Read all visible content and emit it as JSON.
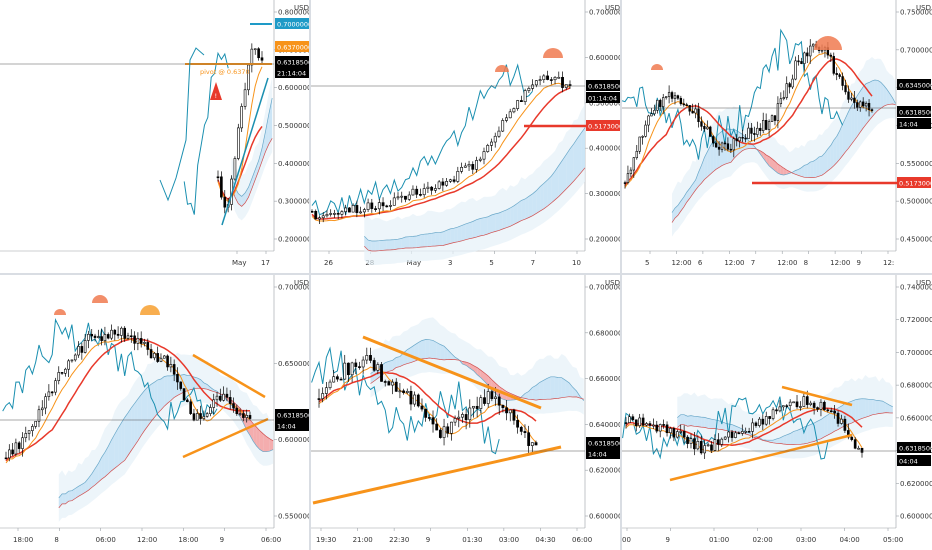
{
  "panels": [
    {
      "id": "p1",
      "currency": "USD",
      "y_ticks": [
        "0.8000000",
        "0.7000000",
        "0.6000000",
        "0.5000000",
        "0.4000000",
        "0.3000000",
        "0.2000000"
      ],
      "x_ticks": [
        "May",
        "17"
      ],
      "price_tags": [
        {
          "text": "0.7000000",
          "bg": "#1e9ac7",
          "fg": "#ffffff"
        },
        {
          "text": "0.6370000",
          "bg": "#f7931a",
          "fg": "#ffffff"
        },
        {
          "text": "0.6318500",
          "bg": "#000000",
          "fg": "#ffffff"
        },
        {
          "text": "21:14:04",
          "bg": "#000000",
          "fg": "#ffffff"
        }
      ],
      "annotation": "pivot @ 0.6370"
    },
    {
      "id": "p2",
      "currency": "USD",
      "y_ticks": [
        "0.7000000",
        "0.6000000",
        "0.5000000",
        "0.4000000",
        "0.3000000",
        "0.2000000"
      ],
      "x_ticks": [
        "26",
        "28",
        "May",
        "3",
        "5",
        "7",
        "10"
      ],
      "price_tags": [
        {
          "text": "0.6318500",
          "bg": "#000000",
          "fg": "#ffffff"
        },
        {
          "text": "01:14:04",
          "bg": "#000000",
          "fg": "#ffffff"
        },
        {
          "text": "0.5173000",
          "bg": "#e8392b",
          "fg": "#ffffff"
        }
      ]
    },
    {
      "id": "p3",
      "currency": "USD",
      "y_ticks": [
        "0.7500000",
        "0.7000000",
        "0.6500000",
        "0.6000000",
        "0.5500000",
        "0.5000000",
        "0.4500000"
      ],
      "x_ticks": [
        "5",
        "12:00",
        "6",
        "12:00",
        "7",
        "12:00",
        "8",
        "12:00",
        "9",
        "12:"
      ],
      "price_tags": [
        {
          "text": "0.6345000",
          "bg": "#000000",
          "fg": "#ffffff"
        },
        {
          "text": "0.6318500",
          "bg": "#000000",
          "fg": "#ffffff"
        },
        {
          "text": "14:04",
          "bg": "#000000",
          "fg": "#ffffff"
        },
        {
          "text": "0.5173000",
          "bg": "#e8392b",
          "fg": "#ffffff"
        }
      ]
    },
    {
      "id": "p4",
      "currency": "USD",
      "y_ticks": [
        "0.7000000",
        "0.6500000",
        "0.6000000",
        "0.5500000"
      ],
      "x_ticks": [
        "18:00",
        "8",
        "06:00",
        "12:00",
        "18:00",
        "9",
        "06:00"
      ],
      "price_tags": [
        {
          "text": "0.6318500",
          "bg": "#000000",
          "fg": "#ffffff"
        },
        {
          "text": "14:04",
          "bg": "#000000",
          "fg": "#ffffff"
        }
      ]
    },
    {
      "id": "p5",
      "currency": "USD",
      "y_ticks": [
        "0.7000000",
        "0.6800000",
        "0.6600000",
        "0.6400000",
        "0.6200000",
        "0.6000000"
      ],
      "x_ticks": [
        "19:30",
        "21:00",
        "22:30",
        "9",
        "01:30",
        "03:00",
        "04:30",
        "06:00"
      ],
      "price_tags": [
        {
          "text": "0.6318500",
          "bg": "#000000",
          "fg": "#ffffff"
        },
        {
          "text": "14:04",
          "bg": "#000000",
          "fg": "#ffffff"
        }
      ]
    },
    {
      "id": "p6",
      "currency": "USD",
      "y_ticks": [
        "0.7400000",
        "0.7200000",
        "0.7000000",
        "0.6800000",
        "0.6600000",
        "0.6400000",
        "0.6200000",
        "0.6000000"
      ],
      "x_ticks": [
        "00",
        "9",
        "01:00",
        "02:00",
        "03:00",
        "04:00",
        "05:00"
      ],
      "price_tags": [
        {
          "text": "0.6318500",
          "bg": "#000000",
          "fg": "#ffffff"
        },
        {
          "text": "04:04",
          "bg": "#000000",
          "fg": "#ffffff"
        }
      ]
    }
  ],
  "colors": {
    "up_candle": "#ffffff",
    "down_candle": "#000000",
    "conversion_line": "#1a8fb0",
    "base_line": "#e8392b",
    "lagging_line": "#f7931a",
    "cloud_bull": "#c6e2f4",
    "cloud_bear": "#f4a0a0",
    "trendline": "#f7931a",
    "support_line": "#e8392b"
  }
}
